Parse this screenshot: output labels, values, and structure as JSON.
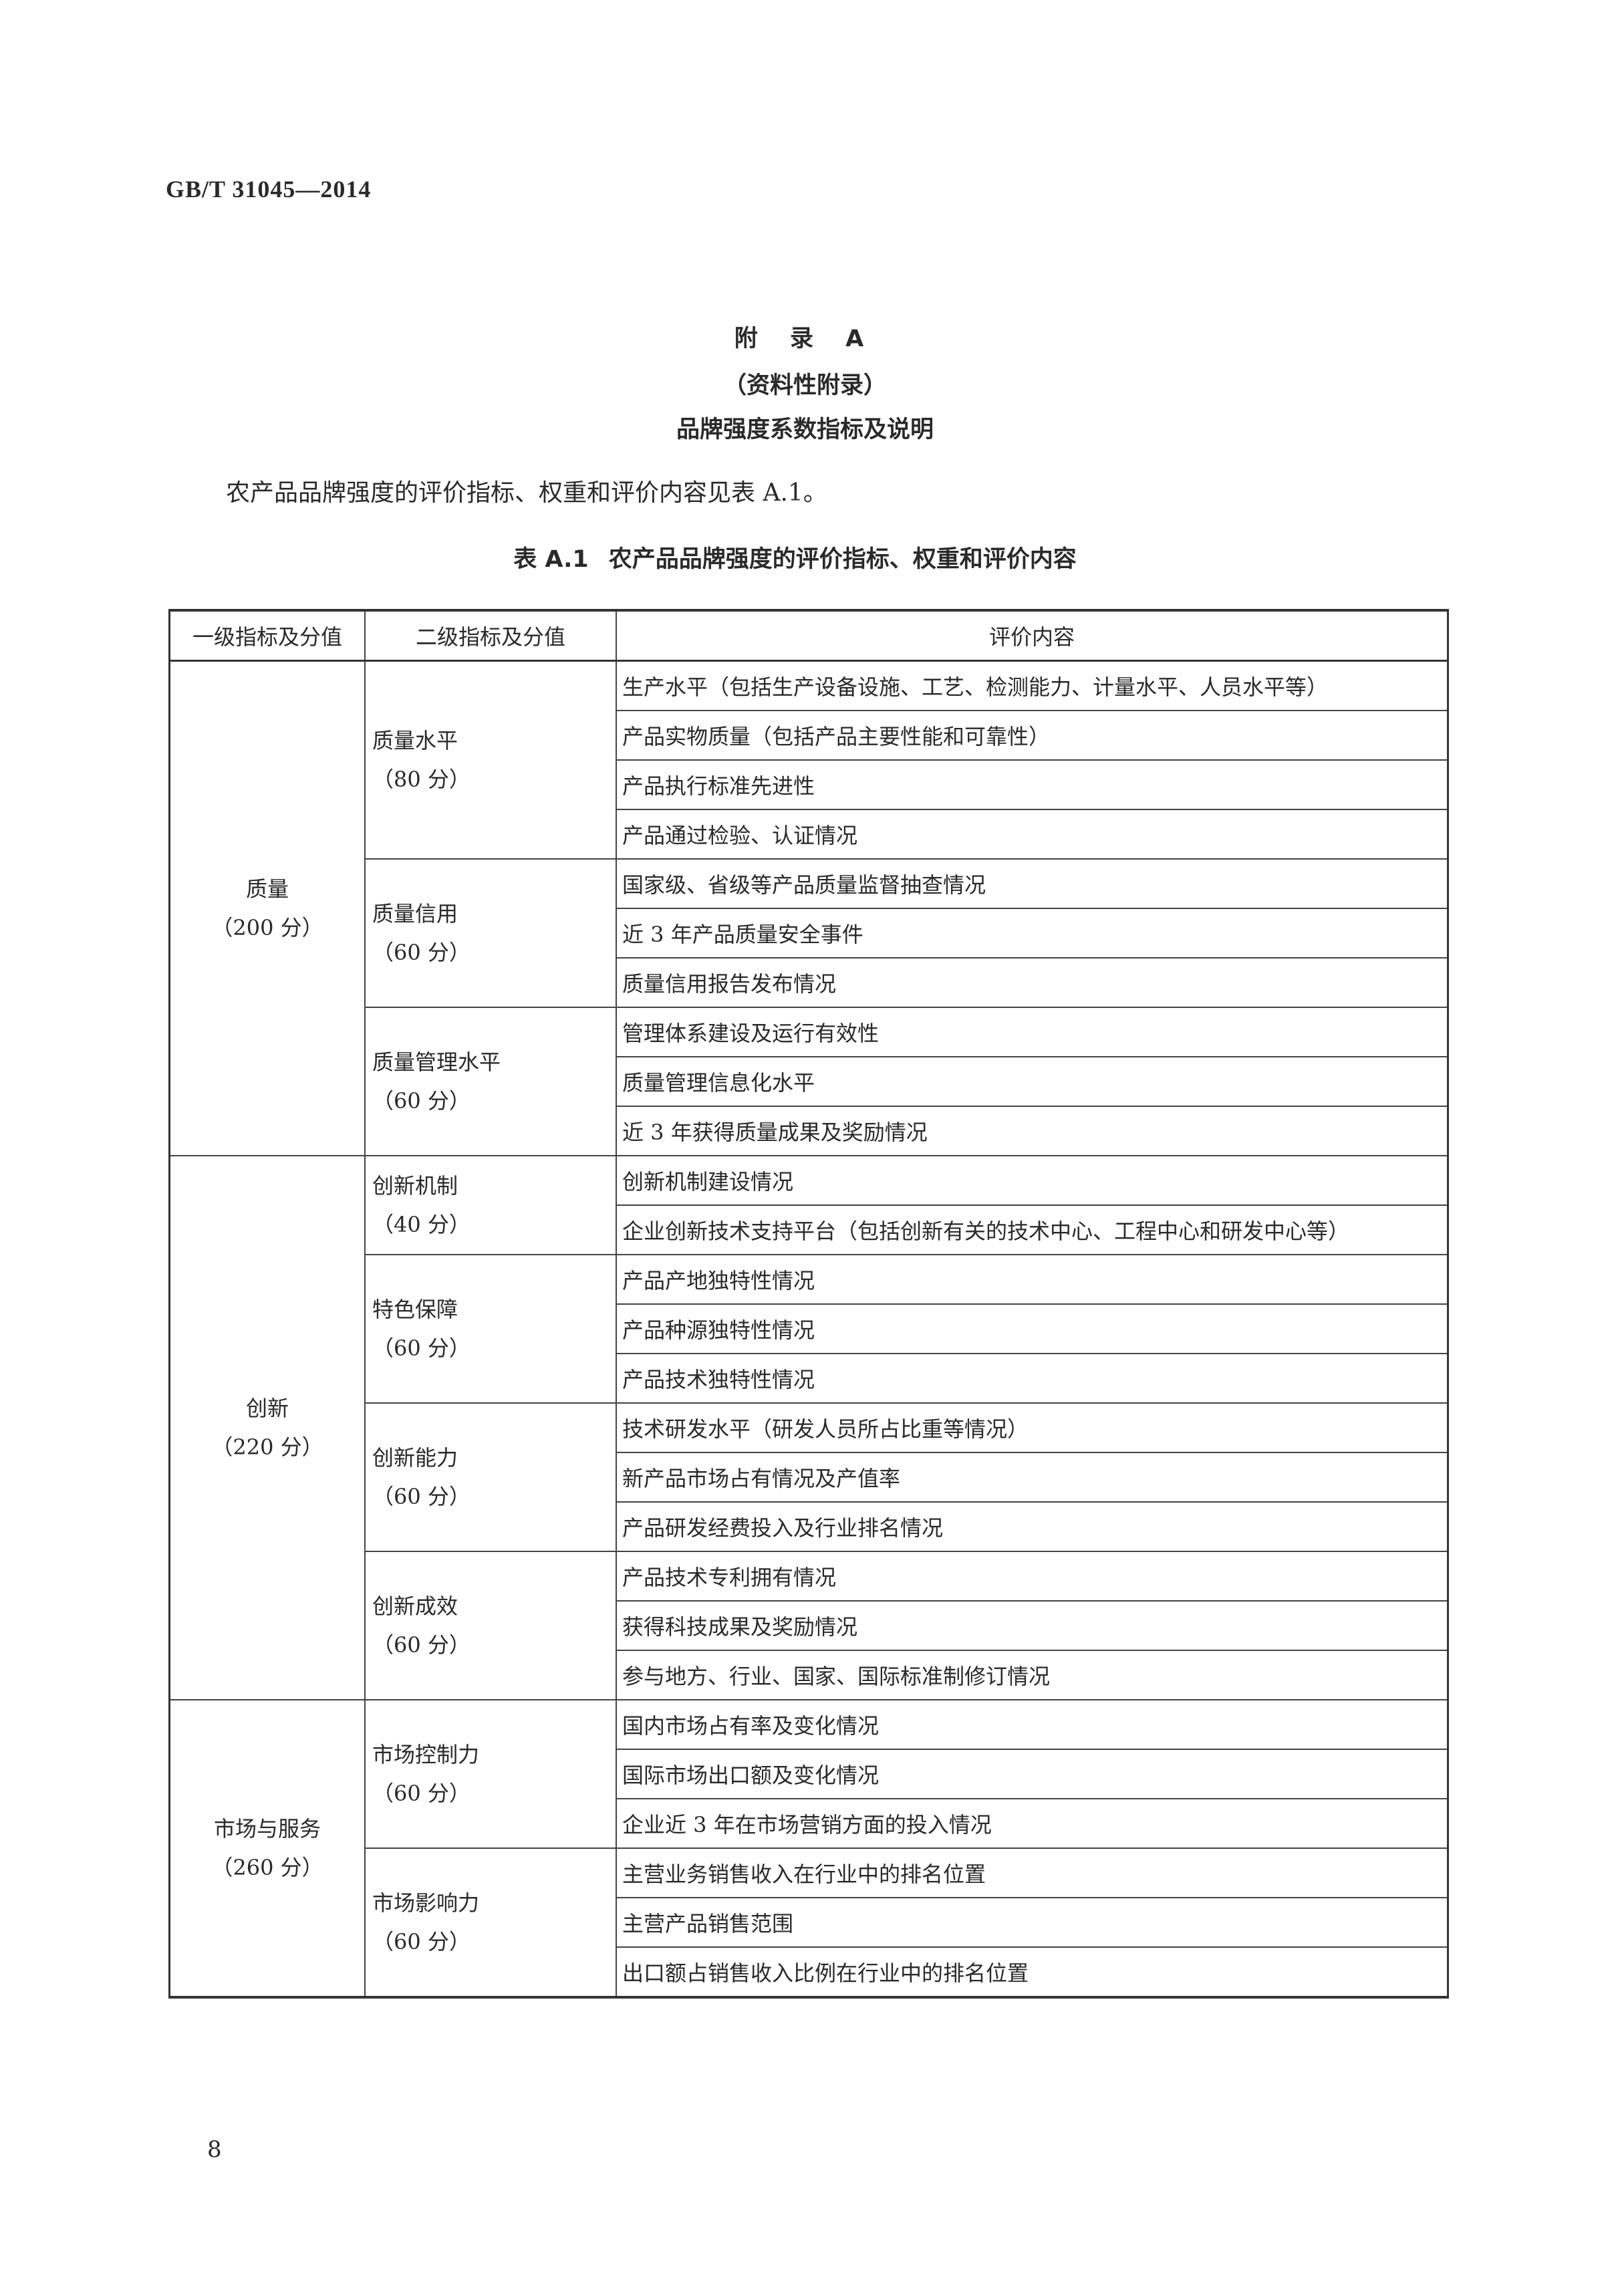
{
  "header": {
    "doc_id": "GB/T 31045—2014"
  },
  "appendix": {
    "title": "附 录 A",
    "type": "（资料性附录）",
    "heading": "品牌强度系数指标及说明"
  },
  "intro": "农产品品牌强度的评价指标、权重和评价内容见表 A.1。",
  "table": {
    "caption_no": "表 A.1",
    "caption": "农产品品牌强度的评价指标、权重和评价内容",
    "headers": [
      "一级指标及分值",
      "二级指标及分值",
      "评价内容"
    ],
    "groups": [
      {
        "name": "质量",
        "score": "（200 分）",
        "subs": [
          {
            "name": "质量水平",
            "score": "（80 分）",
            "items": [
              "生产水平（包括生产设备设施、工艺、检测能力、计量水平、人员水平等）",
              "产品实物质量（包括产品主要性能和可靠性）",
              "产品执行标准先进性",
              "产品通过检验、认证情况"
            ]
          },
          {
            "name": "质量信用",
            "score": "（60 分）",
            "items": [
              "国家级、省级等产品质量监督抽查情况",
              "近 3 年产品质量安全事件",
              "质量信用报告发布情况"
            ]
          },
          {
            "name": "质量管理水平",
            "score": "（60 分）",
            "items": [
              "管理体系建设及运行有效性",
              "质量管理信息化水平",
              "近 3 年获得质量成果及奖励情况"
            ]
          }
        ]
      },
      {
        "name": "创新",
        "score": "（220 分）",
        "subs": [
          {
            "name": "创新机制",
            "score": "（40 分）",
            "items": [
              "创新机制建设情况",
              "企业创新技术支持平台（包括创新有关的技术中心、工程中心和研发中心等）"
            ]
          },
          {
            "name": "特色保障",
            "score": "（60 分）",
            "items": [
              "产品产地独特性情况",
              "产品种源独特性情况",
              "产品技术独特性情况"
            ]
          },
          {
            "name": "创新能力",
            "score": "（60 分）",
            "items": [
              "技术研发水平（研发人员所占比重等情况）",
              "新产品市场占有情况及产值率",
              "产品研发经费投入及行业排名情况"
            ]
          },
          {
            "name": "创新成效",
            "score": "（60 分）",
            "items": [
              "产品技术专利拥有情况",
              "获得科技成果及奖励情况",
              "参与地方、行业、国家、国际标准制修订情况"
            ]
          }
        ]
      },
      {
        "name": "市场与服务",
        "score": "（260 分）",
        "subs": [
          {
            "name": "市场控制力",
            "score": "（60 分）",
            "items": [
              "国内市场占有率及变化情况",
              "国际市场出口额及变化情况",
              "企业近 3 年在市场营销方面的投入情况"
            ]
          },
          {
            "name": "市场影响力",
            "score": "（60 分）",
            "items": [
              "主营业务销售收入在行业中的排名位置",
              "主营产品销售范围",
              "出口额占销售收入比例在行业中的排名位置"
            ]
          }
        ]
      }
    ]
  },
  "footer": {
    "page_number": "8"
  }
}
